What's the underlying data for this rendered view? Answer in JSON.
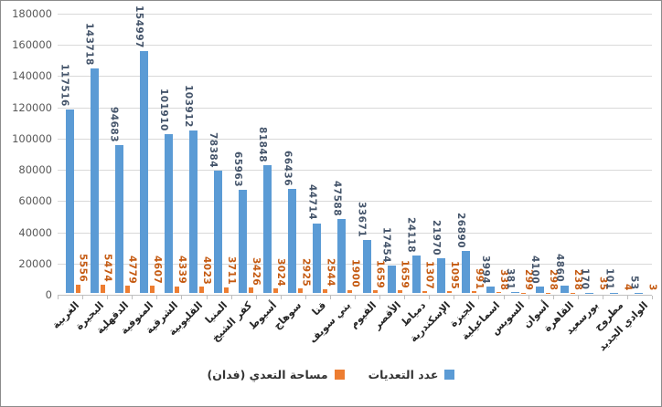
{
  "legend": {
    "count_label": "عدد التعديات",
    "area_label": "مساحة التعدي (فدان)"
  },
  "colors": {
    "background": "#FFFFFF",
    "border": "#8C8C8C",
    "bar_blue": "#5B9BD5",
    "bar_orange": "#ED7D31",
    "label_blue": "#44546A",
    "label_orange": "#C55A11",
    "axis_text": "#595959",
    "category_text": "#262626",
    "gridline": "#D9D9D9",
    "axis_line": "#BFBFBF",
    "legend_text": "#333333"
  },
  "chart_data": {
    "type": "bar",
    "title": "",
    "xlabel": "",
    "ylabel": "",
    "ylim": [
      0,
      180000
    ],
    "ytick_step": 20000,
    "grid": true,
    "legend_position": "bottom",
    "value_labels_rotated": true,
    "categories": [
      "الغربية",
      "البحيرة",
      "الدقهلية",
      "المنوفية",
      "الشرقية",
      "القليوبية",
      "المنيا",
      "كفر الشيخ",
      "أسيوط",
      "سوهاج",
      "قنا",
      "بني سويف",
      "الفيوم",
      "الأقصر",
      "دمياط",
      "الإسكندرية",
      "الجيزة",
      "اسماعيلية",
      "السويس",
      "أسوان",
      "القاهرة",
      "بورسعيد",
      "مطروح",
      "الوادي الجديد"
    ],
    "series": [
      {
        "name": "عدد التعديات",
        "color": "#5B9BD5",
        "label_color": "#44546A",
        "values": [
          117516,
          143718,
          94683,
          154997,
          101910,
          103912,
          78384,
          65963,
          81848,
          66436,
          44714,
          47588,
          33671,
          17454,
          24118,
          21970,
          26890,
          3994,
          381,
          4100,
          4860,
          170,
          101,
          53
        ]
      },
      {
        "name": "مساحة التعدي (فدان)",
        "color": "#ED7D31",
        "label_color": "#C55A11",
        "values": [
          5556,
          5474,
          4779,
          4607,
          4339,
          4023,
          3711,
          3426,
          3024,
          2925,
          2544,
          1900,
          1659,
          1659,
          1307,
          1095,
          991,
          338,
          299,
          298,
          238,
          35,
          4,
          3
        ]
      }
    ],
    "yticks": [
      0,
      20000,
      40000,
      60000,
      80000,
      100000,
      120000,
      140000,
      160000,
      180000
    ]
  }
}
